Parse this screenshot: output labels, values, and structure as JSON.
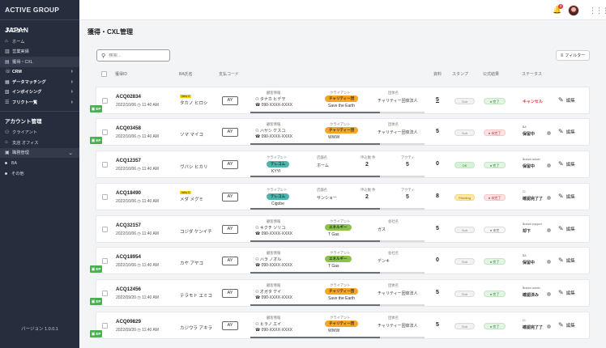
{
  "brand": "ACTIVE GROUP JAPAN",
  "sidebar": {
    "menu_title": "メニュー",
    "items": [
      {
        "label": "ホーム",
        "icon": "home-icon"
      },
      {
        "label": "営業実績",
        "icon": "chart-icon"
      },
      {
        "label": "獲得・CXL",
        "icon": "clipboard-icon",
        "active": true
      },
      {
        "label": "CRM",
        "icon": "phone-icon",
        "chevron": true
      },
      {
        "label": "データマッチング",
        "icon": "database-icon",
        "chevron": true
      },
      {
        "label": "インボイシング",
        "icon": "invoice-icon",
        "chevron": true
      },
      {
        "label": "フリクト一覧",
        "icon": "list-icon",
        "chevron": true
      }
    ],
    "account_title": "アカウント管理",
    "account_items": [
      {
        "label": "クライアント"
      },
      {
        "label": "支店 オフィス"
      },
      {
        "label": "職務管理",
        "chevron": true,
        "active": true
      }
    ],
    "sub_items": [
      {
        "label": "BA"
      },
      {
        "label": "その他"
      }
    ],
    "version": "バージョン 1.0.0.1"
  },
  "topbar": {
    "notification_count": "3"
  },
  "page_title": "獲得・CXL管理",
  "search": {
    "placeholder": "検索..."
  },
  "filter_label": "フィルター",
  "table_headers": {
    "id": "獲得ID",
    "ba_name": "BA氏名",
    "code": "支払コード",
    "count": "資料",
    "stamp": "スタンプ",
    "result": "公式結果",
    "status": "ステータス"
  },
  "rows": [
    {
      "id": "ACQ02834",
      "date": "2022/10/06",
      "time": "11:40 AM",
      "ep": true,
      "new": "New 4",
      "name": "タカノ ヒロシ",
      "code": "AY",
      "layout": "consumer",
      "info_label": "顧客情報",
      "customer_name": "タナカ ヒデヲ",
      "phone": "090-XXXX-XXXX",
      "client_label": "クライアント",
      "client": "チャリティー団",
      "client_color": "orange",
      "client_sub": "Save the Earth",
      "assoc_label": "団体名",
      "assoc": "チャリティー団体法人",
      "count": "5",
      "count_ul": true,
      "stamp": "Sub",
      "stamp_color": "none",
      "result": "完了",
      "result_color": "green",
      "status_small": "",
      "status": "キャンセル",
      "status_red": true,
      "edit": "編集"
    },
    {
      "id": "ACQ03458",
      "date": "2022/10/06",
      "time": "11:40 AM",
      "ep": true,
      "new": "",
      "name": "ソマ マイコ",
      "code": "AY",
      "layout": "consumer",
      "info_label": "顧客情報",
      "customer_name": "ハヤシ ケスコ",
      "phone": "090-XXXX-XXXX",
      "client_label": "クライアント",
      "client": "チャリティー団",
      "client_color": "orange",
      "client_sub": "WWW",
      "assoc_label": "団体名",
      "assoc": "チャリティー団体法人",
      "count": "5",
      "count_ul": false,
      "stamp": "Sub",
      "stamp_color": "none",
      "result": "未完了",
      "result_color": "red",
      "status_small": "BA",
      "status": "保留中",
      "status_red": false,
      "edit": "編集"
    },
    {
      "id": "ACQ12357",
      "date": "2022/10/06",
      "time": "11:40 AM",
      "ep": false,
      "new": "",
      "name": "ヴバシ ヒカリ",
      "code": "AY",
      "layout": "store",
      "client_label": "クライアント",
      "client": "テレコム",
      "client_color": "teal",
      "client_sub": "KYYI",
      "shop_label": "店舗名",
      "shop": "ホーム",
      "q1_label": "申込数 件",
      "q1": "2",
      "q2_label": "アクティ",
      "q2": "5",
      "count": "0",
      "count_ul": false,
      "stamp": "OK",
      "stamp_color": "green",
      "result": "完了",
      "result_color": "green",
      "status_small": "Branch admin",
      "status": "保留中",
      "status_red": false,
      "edit": "編集"
    },
    {
      "id": "ACQ18490",
      "date": "2022/10/06",
      "time": "11:40 AM",
      "ep": false,
      "new": "New 4",
      "name": "メダ メグミ",
      "code": "AY",
      "layout": "store",
      "client_label": "クライアント",
      "client": "テレコム",
      "client_color": "teal",
      "client_sub": "Cigobe",
      "shop_label": "店舗名",
      "shop": "サンショー",
      "q1_label": "申込数 件",
      "q1": "2",
      "q2_label": "アクティ",
      "q2": "5",
      "count": "8",
      "count_ul": false,
      "stamp": "Pending",
      "stamp_color": "yellow",
      "result": "未完了",
      "result_color": "red",
      "status_small": "CI",
      "status": "確認完了了",
      "status_red": false,
      "edit": "編集"
    },
    {
      "id": "ACQ32157",
      "date": "2022/10/06",
      "time": "11:40 AM",
      "ep": false,
      "new": "",
      "name": "コジダ ケンイチ",
      "code": "AY",
      "layout": "consumer",
      "info_label": "顧客情報",
      "customer_name": "キクチ ソリコ",
      "phone": "090-XXXX-XXXX",
      "client_label": "クライアント",
      "client": "エネルギー",
      "client_color": "green",
      "client_sub": "T Gas",
      "assoc_label": "会社名",
      "assoc": "ガス",
      "count": "5",
      "count_ul": false,
      "stamp": "Sub",
      "stamp_color": "none",
      "result": "未完",
      "result_color": "none",
      "status_small": "Branch support",
      "status": "却下",
      "status_red": false,
      "edit": "編集"
    },
    {
      "id": "ACQ18954",
      "date": "2022/10/06",
      "time": "11:40 AM",
      "ep": true,
      "new": "",
      "name": "カヤ アヤコ",
      "code": "AY",
      "layout": "consumer",
      "info_label": "顧客情報",
      "customer_name": "ハラ ノオル",
      "phone": "090-XXXX-XXXX",
      "client_label": "クライアント",
      "client": "エネルギー",
      "client_color": "green",
      "client_sub": "T Gas",
      "assoc_label": "会社名",
      "assoc": "デンキ",
      "count": "0",
      "count_ul": false,
      "stamp": "Sub",
      "stamp_color": "none",
      "result": "完了",
      "result_color": "green",
      "status_small": "BA",
      "status": "保留中",
      "status_red": false,
      "edit": "編集"
    },
    {
      "id": "ACQ12456",
      "date": "2022/09/20",
      "time": "11:40 AM",
      "ep": true,
      "new": "",
      "name": "テラモト エミコ",
      "code": "AY",
      "layout": "consumer",
      "info_label": "顧客情報",
      "customer_name": "オガタ ケイ",
      "phone": "090-XXXX-XXXX",
      "client_label": "クライアント",
      "client": "チャリティー団",
      "client_color": "orange",
      "client_sub": "Save the Earth",
      "assoc_label": "団体名",
      "assoc": "チャリティー団体法人",
      "count": "5",
      "count_ul": false,
      "stamp": "Sub",
      "stamp_color": "none",
      "result": "完了",
      "result_color": "green",
      "status_small": "Branch admin",
      "status": "確認済み",
      "status_red": false,
      "edit": "編集"
    },
    {
      "id": "ACQ09829",
      "date": "2022/09/20",
      "time": "11:40 AM",
      "ep": true,
      "new": "",
      "name": "カジウラ アキラ",
      "code": "AY",
      "layout": "consumer",
      "info_label": "顧客情報",
      "customer_name": "ヒラノ エイ",
      "phone": "090-XXXX-XXXX",
      "client_label": "クライアント",
      "client": "チャリティー団",
      "client_color": "orange",
      "client_sub": "WWW",
      "assoc_label": "団体名",
      "assoc": "チャリティー団体法人",
      "count": "5",
      "count_ul": false,
      "stamp": "Sub",
      "stamp_color": "none",
      "result": "完了",
      "result_color": "green",
      "status_small": "CI",
      "status": "確認完了了",
      "status_red": false,
      "edit": "編集"
    }
  ]
}
